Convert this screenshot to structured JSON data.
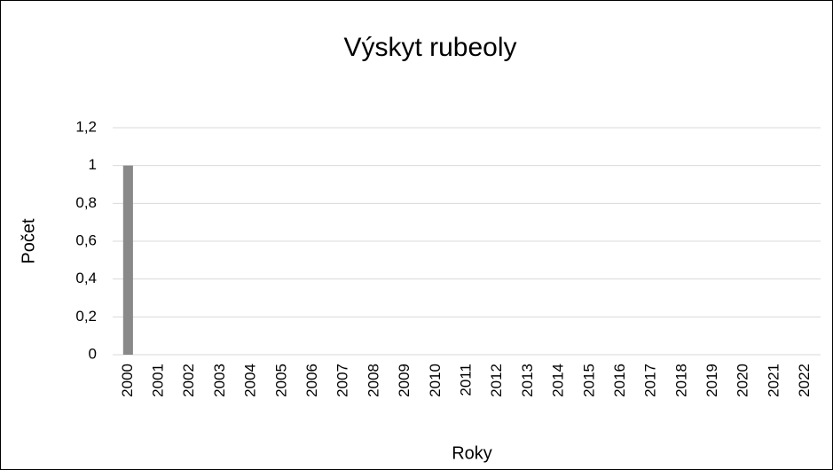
{
  "chart_data": {
    "type": "bar",
    "title": "Výskyt rubeoly",
    "x_label": "Roky",
    "y_label": "Počet",
    "categories": [
      "2000",
      "2001",
      "2002",
      "2003",
      "2004",
      "2005",
      "2006",
      "2007",
      "2008",
      "2009",
      "2010",
      "2011",
      "2012",
      "2013",
      "2014",
      "2015",
      "2016",
      "2017",
      "2018",
      "2019",
      "2020",
      "2021",
      "2022"
    ],
    "values": [
      1,
      0,
      0,
      0,
      0,
      0,
      0,
      0,
      0,
      0,
      0,
      0,
      0,
      0,
      0,
      0,
      0,
      0,
      0,
      0,
      0,
      0,
      0
    ],
    "color": "#898989",
    "ylim": [
      0,
      1.2
    ],
    "yticks": [
      0,
      {
        "value": 0.2,
        "label": "0,2"
      },
      {
        "value": 0.4,
        "label": "0,4"
      },
      {
        "value": 0.6,
        "label": "0,6"
      },
      {
        "value": 0.8,
        "label": "0,8"
      },
      1,
      {
        "value": 1.2,
        "label": "1,2"
      }
    ],
    "grid": true
  }
}
